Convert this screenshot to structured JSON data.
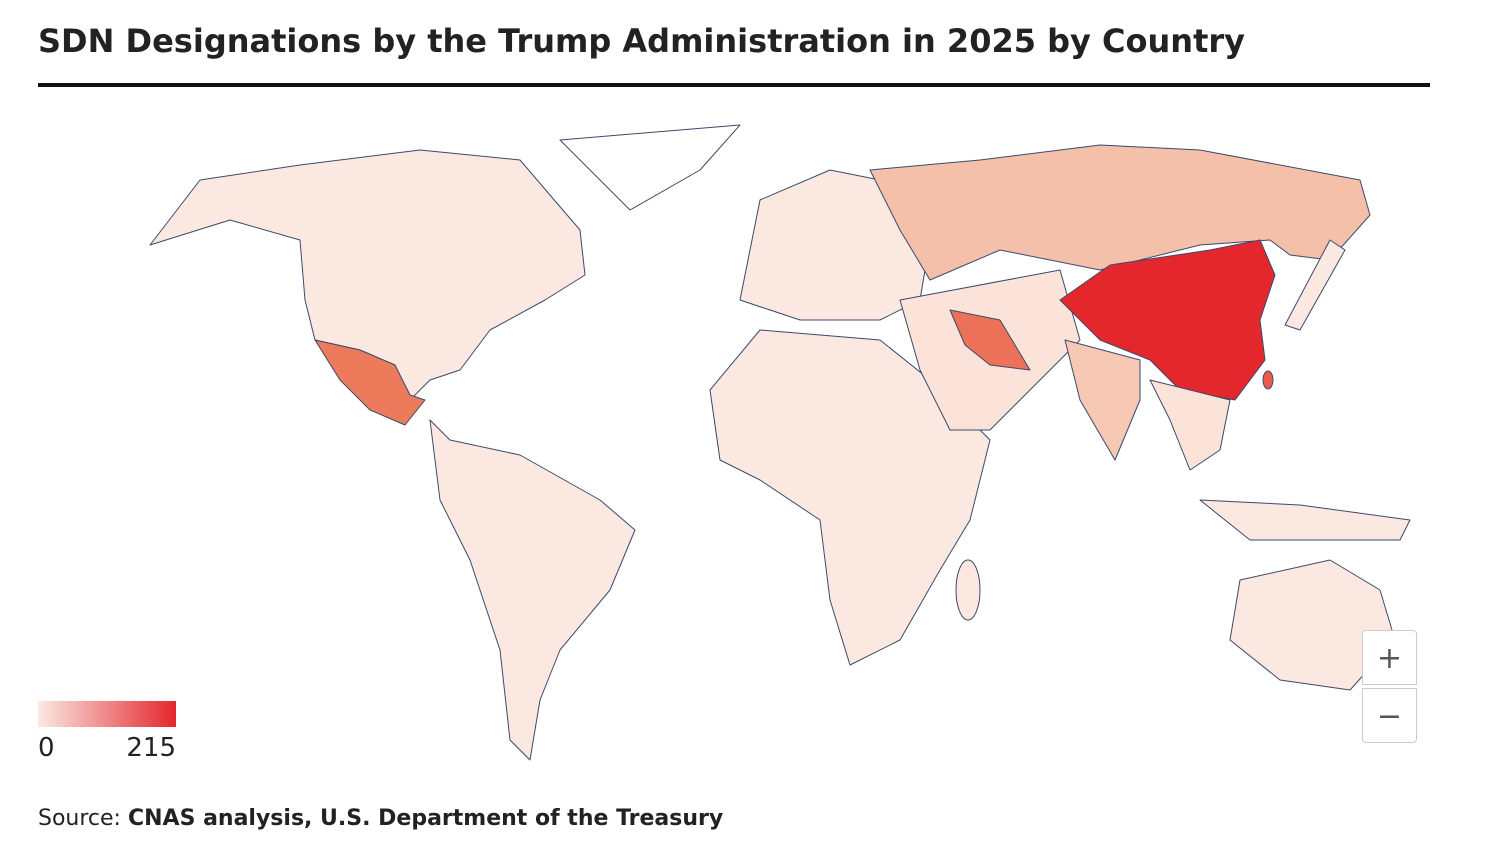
{
  "title": "SDN Designations by the Trump Administration in 2025 by Country",
  "legend": {
    "range": [
      0,
      215
    ],
    "colorscale": [
      "#fbe9e3",
      "#e4262d"
    ]
  },
  "source": {
    "label": "Source:",
    "text": "CNAS analysis, U.S. Department of the Treasury"
  },
  "zoom": {
    "in": "+",
    "out": "−"
  }
}
